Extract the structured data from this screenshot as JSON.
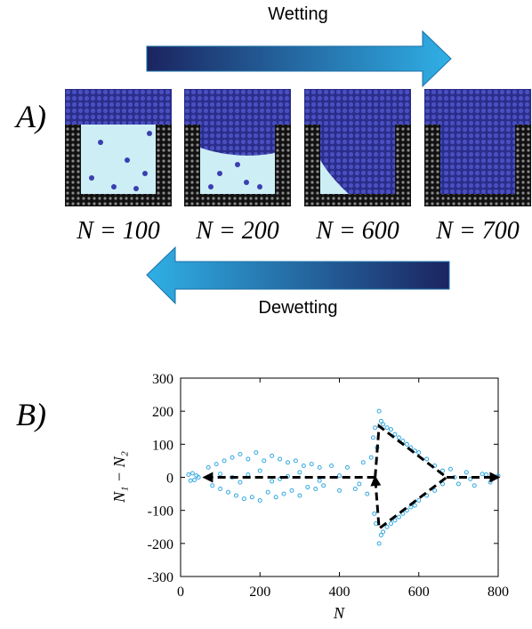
{
  "panel_a": {
    "label": "A)",
    "wetting": "Wetting",
    "dewetting": "Dewetting",
    "snapshots": [
      "N = 100",
      "N = 200",
      "N = 600",
      "N = 700"
    ]
  },
  "chart_data": {
    "type": "scatter",
    "label": "B)",
    "xlabel": "N",
    "ylabel": "N₁ − N₂",
    "xlim": [
      0,
      800
    ],
    "ylim": [
      -300,
      300
    ],
    "xticks": [
      0,
      200,
      400,
      600,
      800
    ],
    "yticks": [
      -300,
      -200,
      -100,
      0,
      100,
      200,
      300
    ],
    "series": [
      {
        "color": "#33a8e0",
        "x": [
          20,
          25,
          30,
          35,
          40,
          45,
          70,
          80,
          90,
          100,
          110,
          120,
          130,
          140,
          150,
          160,
          170,
          180,
          190,
          200,
          210,
          220,
          230,
          240,
          250,
          260,
          270,
          280,
          290,
          300,
          310,
          320,
          330,
          340,
          350,
          360,
          380,
          400,
          420,
          440,
          460,
          470,
          480,
          100,
          150,
          200,
          250,
          300,
          350,
          400,
          450,
          130,
          170,
          230,
          270,
          485,
          488,
          490,
          492,
          495,
          500,
          505,
          510,
          520,
          530,
          540,
          550,
          560,
          570,
          580,
          590,
          600,
          620,
          640,
          660,
          500,
          505,
          510,
          520,
          530,
          540,
          550,
          560,
          570,
          580,
          590,
          600,
          620,
          640,
          660,
          680,
          700,
          720,
          740,
          760,
          780,
          800,
          690,
          730,
          770
        ],
        "y": [
          8,
          -10,
          12,
          -8,
          5,
          0,
          30,
          -25,
          40,
          -35,
          50,
          -45,
          60,
          -55,
          70,
          -65,
          55,
          -60,
          75,
          -70,
          50,
          -45,
          65,
          -60,
          55,
          -50,
          45,
          -40,
          50,
          -55,
          35,
          -30,
          40,
          -35,
          30,
          -25,
          35,
          -40,
          30,
          -35,
          45,
          -50,
          60,
          10,
          -15,
          20,
          -5,
          15,
          -10,
          5,
          -20,
          0,
          8,
          -12,
          3,
          120,
          -110,
          150,
          -140,
          90,
          200,
          170,
          160,
          150,
          145,
          130,
          120,
          110,
          100,
          90,
          80,
          75,
          55,
          35,
          20,
          -200,
          -175,
          -165,
          -150,
          -140,
          -130,
          -120,
          -110,
          -100,
          -90,
          -85,
          -70,
          -55,
          -40,
          -20,
          25,
          -20,
          15,
          -25,
          10,
          -15,
          5,
          0,
          -5,
          8
        ]
      }
    ],
    "paths": [
      {
        "color": "#000000",
        "x": [
          670,
          800
        ],
        "y": [
          0,
          0
        ]
      },
      {
        "color": "#000000",
        "x": [
          490,
          60
        ],
        "y": [
          0,
          0
        ]
      },
      {
        "color": "#000000",
        "x": [
          490,
          500,
          670,
          500,
          490
        ],
        "y": [
          0,
          155,
          0,
          -155,
          0
        ]
      }
    ]
  }
}
